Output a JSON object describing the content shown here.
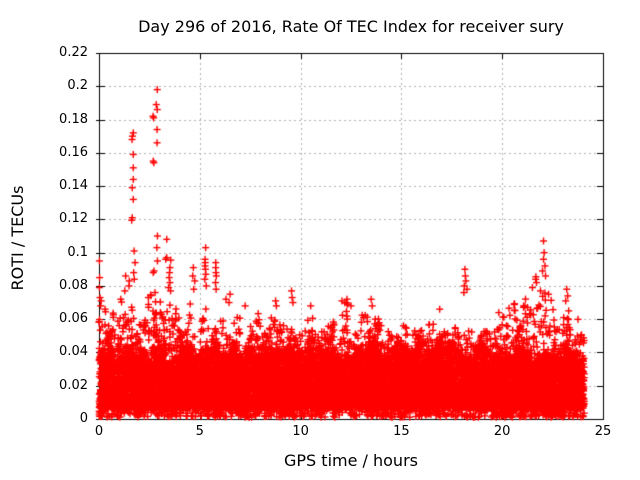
{
  "chart_data": {
    "type": "scatter",
    "title": "Day 296 of 2016, Rate Of TEC Index for receiver sury",
    "xlabel": "GPS time / hours",
    "ylabel": "ROTI / TECUs",
    "xlim": [
      0,
      25
    ],
    "ylim": [
      0,
      0.22
    ],
    "xticks": {
      "values": [
        0,
        5,
        10,
        15,
        20,
        25
      ],
      "labels": [
        "0",
        "5",
        "10",
        "15",
        "20",
        "25"
      ]
    },
    "yticks": {
      "values": [
        0,
        0.02,
        0.04,
        0.06,
        0.08,
        0.1,
        0.12,
        0.14,
        0.16,
        0.18,
        0.2,
        0.22
      ],
      "labels": [
        "0",
        "0.02",
        "0.04",
        "0.06",
        "0.08",
        "0.1",
        "0.12",
        "0.14",
        "0.16",
        "0.18",
        "0.2",
        "0.22"
      ]
    },
    "grid": true,
    "legend": "none",
    "marker": {
      "shape": "plus",
      "size": 7,
      "color": "#ff0000"
    },
    "colors": {
      "marker": "#ff0000",
      "axis": "#000000",
      "grid": "#b4b4b4",
      "background": "#ffffff",
      "text": "#000000"
    },
    "x_data_range": [
      0,
      24.07
    ],
    "point_cloud": {
      "n_points_estimate": 14000,
      "seed": 296,
      "baseline_floor": 0.001,
      "core_band": [
        0.0065,
        0.042
      ],
      "bin_width_hours": 0.5,
      "band_top_per_half_hour": [
        0.066,
        0.06,
        0.068,
        0.065,
        0.06,
        0.066,
        0.065,
        0.063,
        0.058,
        0.062,
        0.067,
        0.062,
        0.062,
        0.06,
        0.055,
        0.058,
        0.056,
        0.062,
        0.058,
        0.064,
        0.058,
        0.06,
        0.055,
        0.058,
        0.063,
        0.057,
        0.06,
        0.062,
        0.056,
        0.055,
        0.058,
        0.055,
        0.056,
        0.06,
        0.055,
        0.058,
        0.062,
        0.056,
        0.054,
        0.058,
        0.062,
        0.068,
        0.065,
        0.07,
        0.068,
        0.064,
        0.062,
        0.06
      ],
      "outliers": [
        [
          0.02,
          0.095
        ],
        [
          0.03,
          0.085
        ],
        [
          0.02,
          0.079
        ],
        [
          0.05,
          0.073
        ],
        [
          0.08,
          0.068
        ],
        [
          0.3,
          0.066
        ],
        [
          1.08,
          0.072
        ],
        [
          1.28,
          0.077
        ],
        [
          1.32,
          0.086
        ],
        [
          1.49,
          0.08
        ],
        [
          1.5,
          0.083
        ],
        [
          1.62,
          0.1195
        ],
        [
          1.65,
          0.121
        ],
        [
          1.7,
          0.132
        ],
        [
          1.65,
          0.139
        ],
        [
          1.7,
          0.144
        ],
        [
          1.7,
          0.151
        ],
        [
          1.7,
          0.159
        ],
        [
          1.64,
          0.168
        ],
        [
          1.66,
          0.17
        ],
        [
          1.7,
          0.172
        ],
        [
          1.74,
          0.101
        ],
        [
          1.79,
          0.094
        ],
        [
          1.72,
          0.088
        ],
        [
          1.75,
          0.084
        ],
        [
          2.45,
          0.073
        ],
        [
          2.68,
          0.182
        ],
        [
          2.71,
          0.181
        ],
        [
          2.69,
          0.155
        ],
        [
          2.72,
          0.154
        ],
        [
          2.69,
          0.088
        ],
        [
          2.73,
          0.089
        ],
        [
          2.78,
          0.076
        ],
        [
          2.84,
          0.189
        ],
        [
          2.88,
          0.174
        ],
        [
          2.88,
          0.166
        ],
        [
          2.89,
          0.198
        ],
        [
          2.89,
          0.186
        ],
        [
          2.87,
          0.103
        ],
        [
          2.9,
          0.11
        ],
        [
          2.9,
          0.095
        ],
        [
          3.31,
          0.096
        ],
        [
          3.36,
          0.108
        ],
        [
          3.36,
          0.097
        ],
        [
          3.45,
          0.079
        ],
        [
          3.48,
          0.085
        ],
        [
          3.5,
          0.088
        ],
        [
          3.52,
          0.091
        ],
        [
          3.52,
          0.082
        ],
        [
          3.56,
          0.0955
        ],
        [
          3.55,
          0.077
        ],
        [
          4.65,
          0.086
        ],
        [
          4.68,
          0.091
        ],
        [
          4.75,
          0.083
        ],
        [
          4.7,
          0.078
        ],
        [
          5.25,
          0.084
        ],
        [
          5.26,
          0.096
        ],
        [
          5.26,
          0.092
        ],
        [
          5.27,
          0.094
        ],
        [
          5.28,
          0.09
        ],
        [
          5.29,
          0.103
        ],
        [
          5.3,
          0.087
        ],
        [
          5.32,
          0.08
        ],
        [
          5.78,
          0.082
        ],
        [
          5.79,
          0.094
        ],
        [
          5.79,
          0.091
        ],
        [
          5.8,
          0.088
        ],
        [
          5.81,
          0.078
        ],
        [
          5.82,
          0.086
        ],
        [
          6.3,
          0.072
        ],
        [
          6.45,
          0.07
        ],
        [
          6.5,
          0.075
        ],
        [
          7.25,
          0.068
        ],
        [
          8.76,
          0.071
        ],
        [
          8.8,
          0.068
        ],
        [
          9.55,
          0.077
        ],
        [
          9.58,
          0.073
        ],
        [
          9.62,
          0.07
        ],
        [
          10.5,
          0.068
        ],
        [
          12.3,
          0.072
        ],
        [
          12.33,
          0.069
        ],
        [
          12.5,
          0.068
        ],
        [
          13.5,
          0.072
        ],
        [
          13.55,
          0.068
        ],
        [
          16.9,
          0.066
        ],
        [
          18.1,
          0.076
        ],
        [
          18.12,
          0.08
        ],
        [
          18.15,
          0.09
        ],
        [
          18.17,
          0.086
        ],
        [
          18.2,
          0.083
        ],
        [
          18.25,
          0.078
        ],
        [
          21.5,
          0.079
        ],
        [
          21.66,
          0.084
        ],
        [
          21.67,
          0.0855
        ],
        [
          21.7,
          0.082
        ],
        [
          21.9,
          0.077
        ],
        [
          22.0,
          0.089
        ],
        [
          22.05,
          0.107
        ],
        [
          22.05,
          0.096
        ],
        [
          22.08,
          0.1
        ],
        [
          22.12,
          0.092
        ],
        [
          22.15,
          0.086
        ],
        [
          22.3,
          0.075
        ],
        [
          23.15,
          0.071
        ],
        [
          23.2,
          0.078
        ],
        [
          23.25,
          0.074
        ],
        [
          23.3,
          0.065
        ]
      ]
    }
  }
}
